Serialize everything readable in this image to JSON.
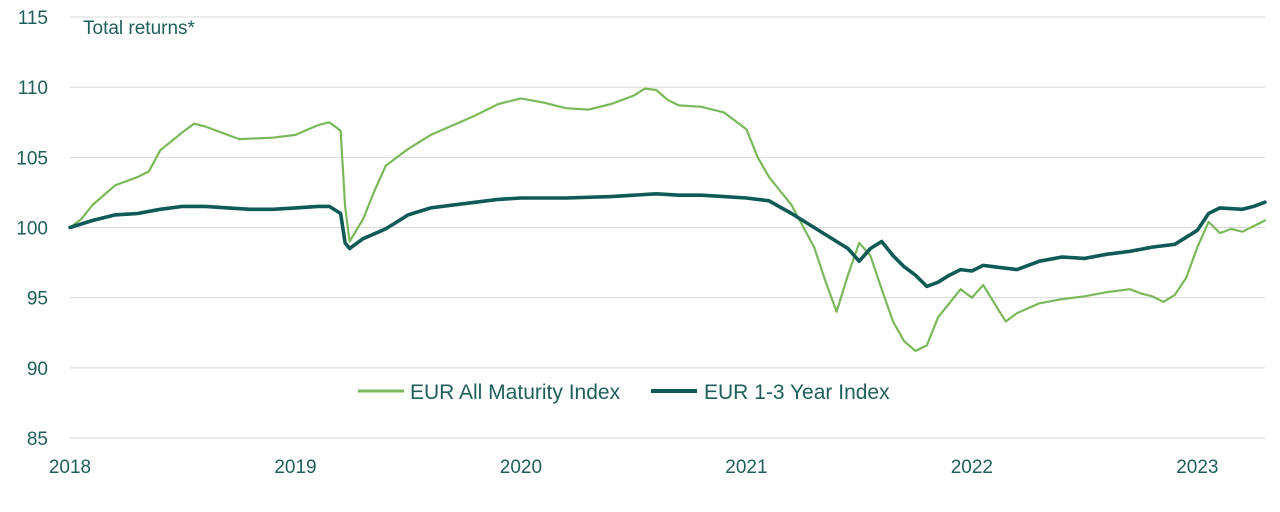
{
  "chart_data": {
    "type": "line",
    "title": "Total returns*",
    "xlabel": "",
    "ylabel": "",
    "xlim": [
      2018.0,
      2023.3
    ],
    "ylim": [
      85,
      115
    ],
    "yticks": [
      85,
      90,
      95,
      100,
      105,
      110,
      115
    ],
    "xticks": [
      2018,
      2019,
      2020,
      2021,
      2022,
      2023
    ],
    "grid": true,
    "legend_position": "bottom-center",
    "series": [
      {
        "name": "EUR All Maturity Index",
        "color": "#7ab85a",
        "x": [
          2018.0,
          2018.05,
          2018.1,
          2018.2,
          2018.3,
          2018.35,
          2018.4,
          2018.5,
          2018.55,
          2018.6,
          2018.7,
          2018.75,
          2018.9,
          2019.0,
          2019.1,
          2019.15,
          2019.2,
          2019.22,
          2019.24,
          2019.3,
          2019.35,
          2019.4,
          2019.5,
          2019.6,
          2019.7,
          2019.8,
          2019.9,
          2020.0,
          2020.1,
          2020.2,
          2020.3,
          2020.4,
          2020.5,
          2020.55,
          2020.6,
          2020.65,
          2020.7,
          2020.8,
          2020.9,
          2021.0,
          2021.05,
          2021.1,
          2021.15,
          2021.2,
          2021.25,
          2021.3,
          2021.35,
          2021.4,
          2021.45,
          2021.5,
          2021.55,
          2021.6,
          2021.65,
          2021.7,
          2021.75,
          2021.8,
          2021.85,
          2021.9,
          2021.95,
          2022.0,
          2022.05,
          2022.1,
          2022.15,
          2022.2,
          2022.3,
          2022.4,
          2022.5,
          2022.6,
          2022.7,
          2022.75,
          2022.8,
          2022.85,
          2022.9,
          2022.95,
          2023.0,
          2023.05,
          2023.1,
          2023.15,
          2023.2,
          2023.25,
          2023.3
        ],
        "values": [
          100.0,
          100.6,
          101.6,
          103.0,
          103.6,
          104.0,
          105.5,
          106.8,
          107.4,
          107.2,
          106.6,
          106.3,
          106.4,
          106.6,
          107.3,
          107.5,
          106.9,
          101.5,
          99.0,
          100.6,
          102.6,
          104.4,
          105.6,
          106.6,
          107.3,
          108.0,
          108.8,
          109.2,
          108.9,
          108.5,
          108.4,
          108.8,
          109.4,
          109.9,
          109.8,
          109.1,
          108.7,
          108.6,
          108.2,
          107.0,
          105.0,
          103.6,
          102.6,
          101.6,
          100.1,
          98.6,
          96.2,
          94.0,
          96.6,
          98.9,
          98.0,
          95.6,
          93.3,
          91.9,
          91.2,
          91.6,
          93.6,
          94.6,
          95.6,
          95.0,
          95.9,
          94.6,
          93.3,
          93.9,
          94.6,
          94.9,
          95.1,
          95.4,
          95.6,
          95.3,
          95.1,
          94.7,
          95.2,
          96.4,
          98.6,
          100.4,
          99.6,
          99.9,
          99.7,
          100.1,
          100.5
        ]
      },
      {
        "name": "EUR 1-3 Year Index",
        "color": "#0e5a56",
        "x": [
          2018.0,
          2018.1,
          2018.2,
          2018.3,
          2018.4,
          2018.5,
          2018.6,
          2018.7,
          2018.8,
          2018.9,
          2019.0,
          2019.1,
          2019.15,
          2019.2,
          2019.22,
          2019.24,
          2019.3,
          2019.4,
          2019.5,
          2019.6,
          2019.7,
          2019.8,
          2019.9,
          2020.0,
          2020.2,
          2020.4,
          2020.5,
          2020.6,
          2020.7,
          2020.8,
          2020.9,
          2021.0,
          2021.1,
          2021.2,
          2021.3,
          2021.4,
          2021.45,
          2021.5,
          2021.55,
          2021.6,
          2021.65,
          2021.7,
          2021.75,
          2021.8,
          2021.85,
          2021.9,
          2021.95,
          2022.0,
          2022.05,
          2022.1,
          2022.2,
          2022.3,
          2022.4,
          2022.5,
          2022.6,
          2022.7,
          2022.8,
          2022.9,
          2023.0,
          2023.05,
          2023.1,
          2023.2,
          2023.25,
          2023.3
        ],
        "values": [
          100.0,
          100.5,
          100.9,
          101.0,
          101.3,
          101.5,
          101.5,
          101.4,
          101.3,
          101.3,
          101.4,
          101.5,
          101.5,
          101.0,
          98.9,
          98.5,
          99.2,
          99.9,
          100.9,
          101.4,
          101.6,
          101.8,
          102.0,
          102.1,
          102.1,
          102.2,
          102.3,
          102.4,
          102.3,
          102.3,
          102.2,
          102.1,
          101.9,
          101.0,
          100.0,
          99.0,
          98.5,
          97.6,
          98.5,
          99.0,
          98.0,
          97.2,
          96.6,
          95.8,
          96.1,
          96.6,
          97.0,
          96.9,
          97.3,
          97.2,
          97.0,
          97.6,
          97.9,
          97.8,
          98.1,
          98.3,
          98.6,
          98.8,
          99.8,
          101.0,
          101.4,
          101.3,
          101.5,
          101.8
        ]
      }
    ]
  }
}
